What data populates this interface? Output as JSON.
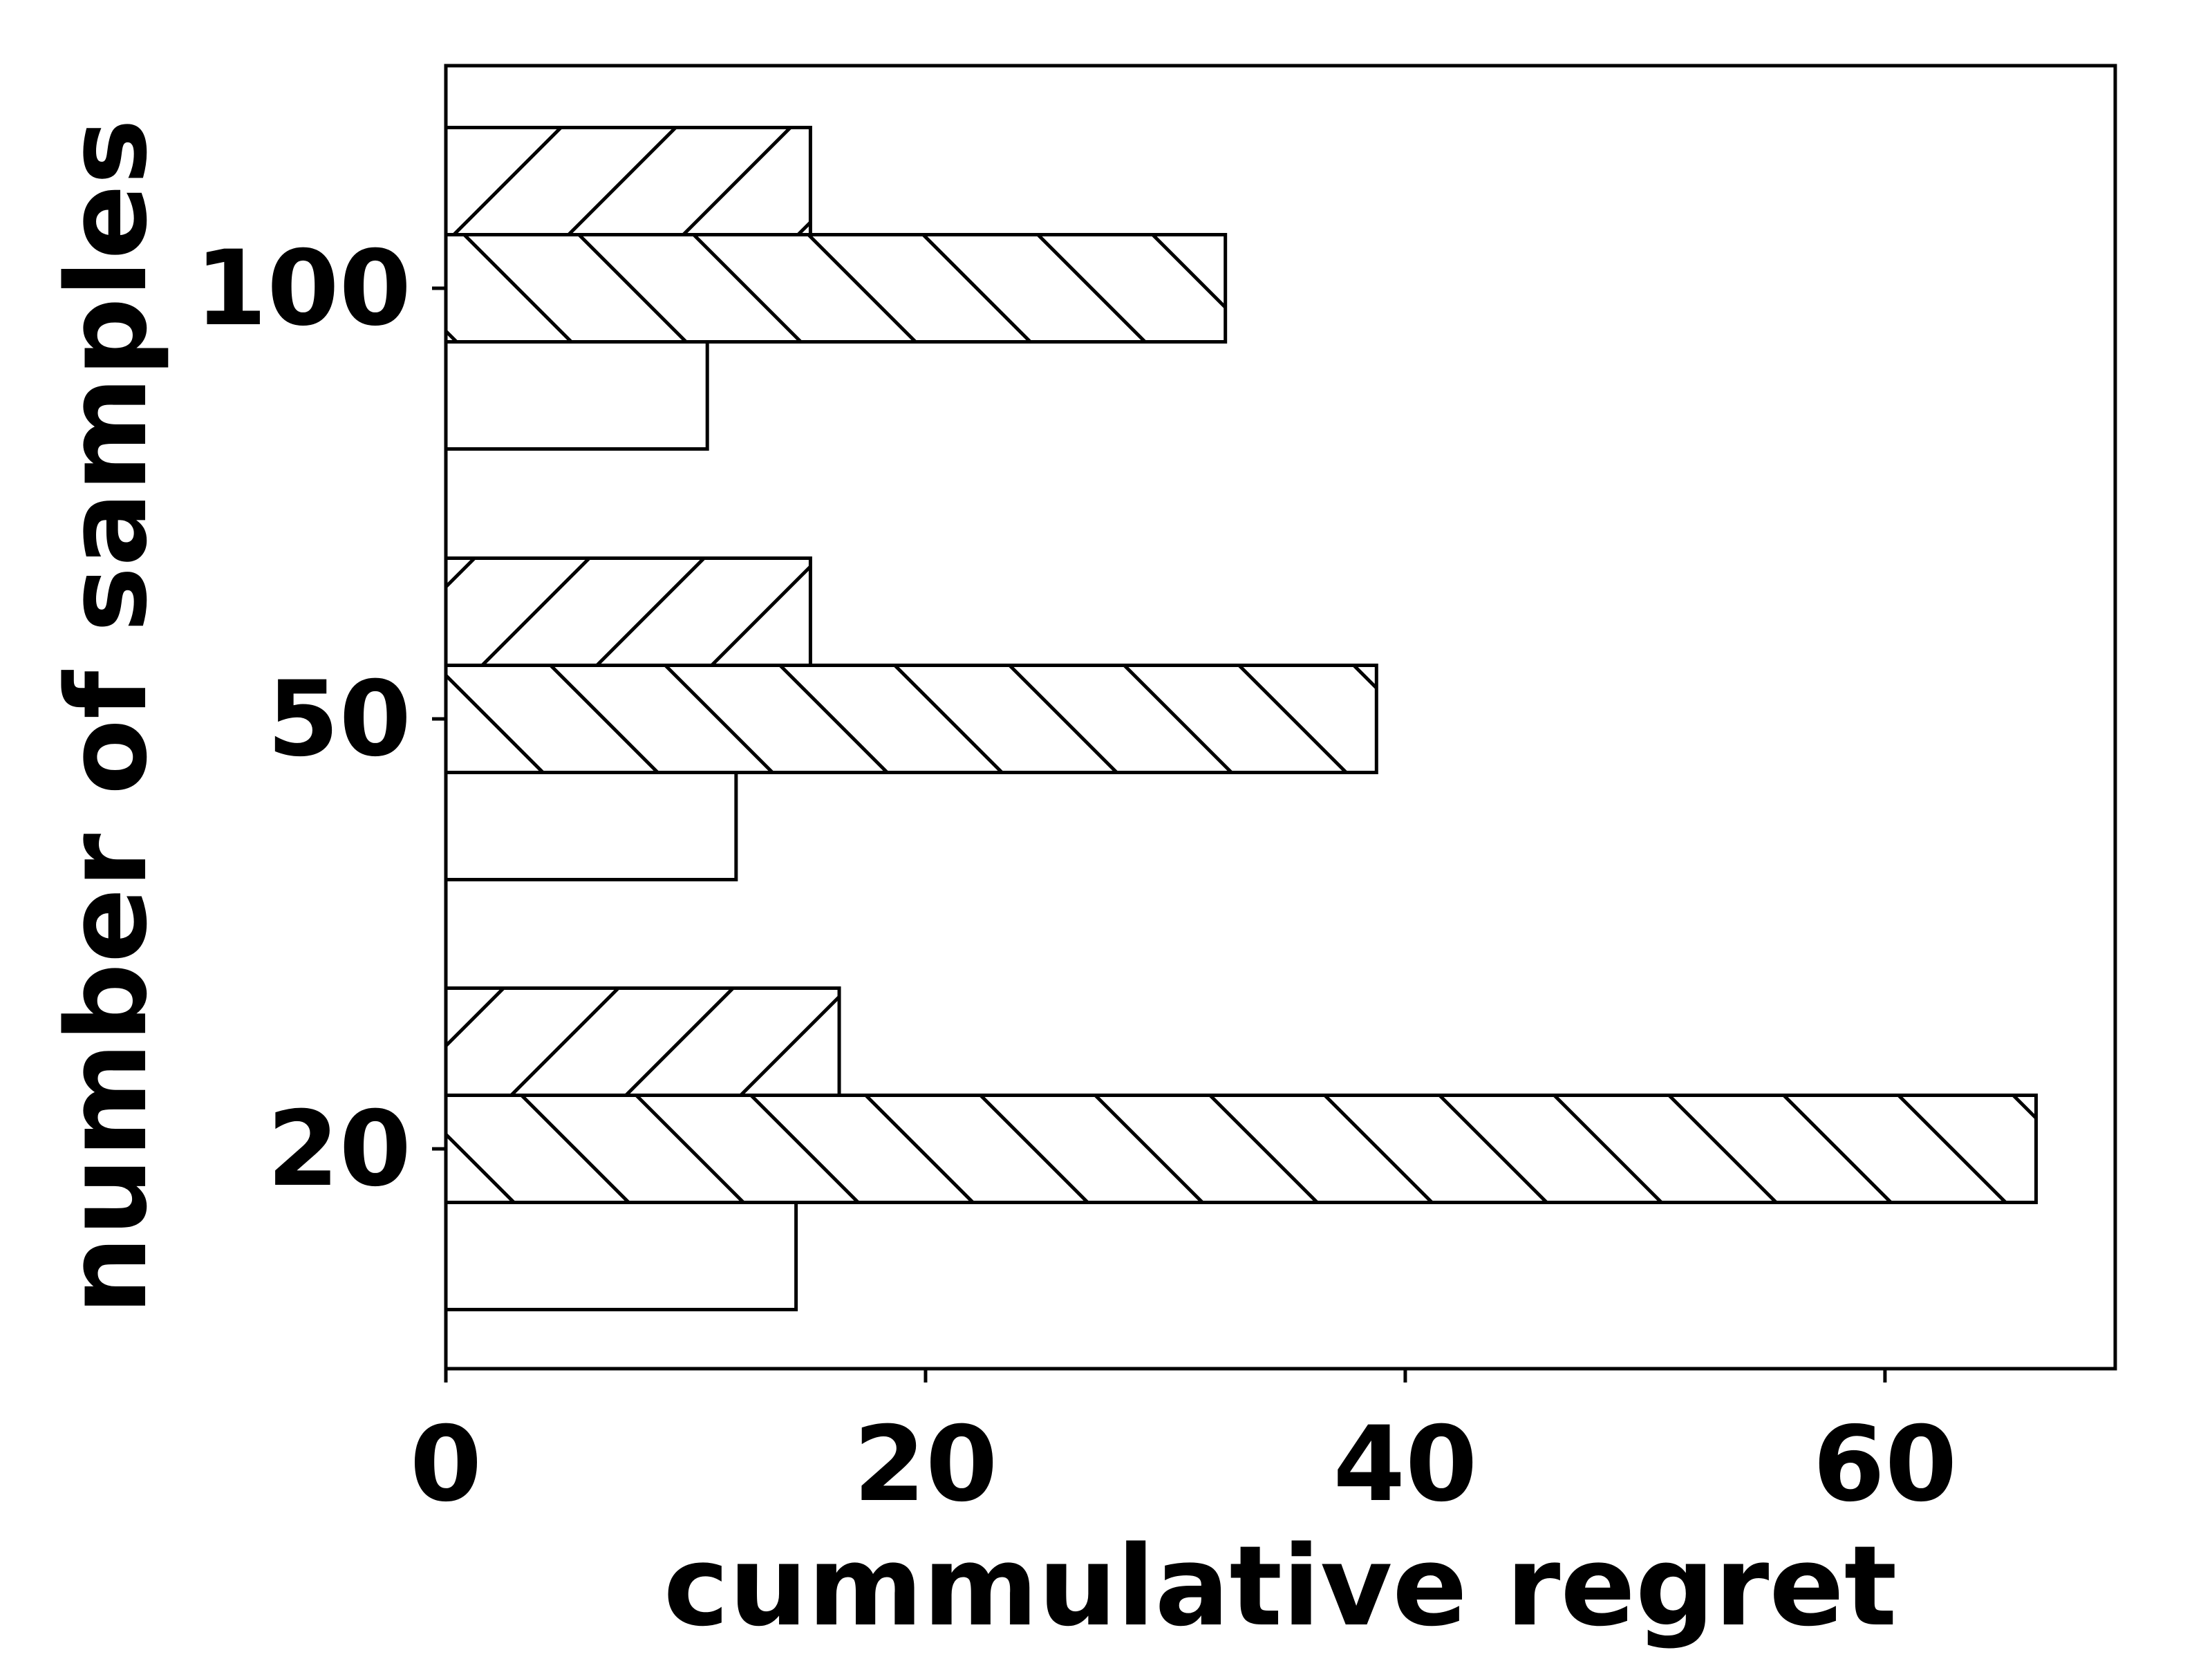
{
  "chart_data": {
    "type": "bar",
    "orientation": "horizontal",
    "categories": [
      "20",
      "50",
      "100"
    ],
    "series": [
      {
        "hatch": "none",
        "values": [
          14.6,
          12.1,
          10.9
        ]
      },
      {
        "hatch": "backslash",
        "values": [
          66.3,
          38.8,
          32.5
        ]
      },
      {
        "hatch": "slash",
        "values": [
          16.4,
          15.2,
          15.2
        ]
      }
    ],
    "xlabel": "cummulative regret",
    "ylabel": "number of samples",
    "xlim": [
      0,
      69.6
    ],
    "xticks": [
      0,
      20,
      40,
      60
    ],
    "grid": false,
    "legend": "none",
    "colors": {
      "bar_fill": "#ffffff",
      "bar_edge": "#000000",
      "axis": "#000000"
    }
  }
}
